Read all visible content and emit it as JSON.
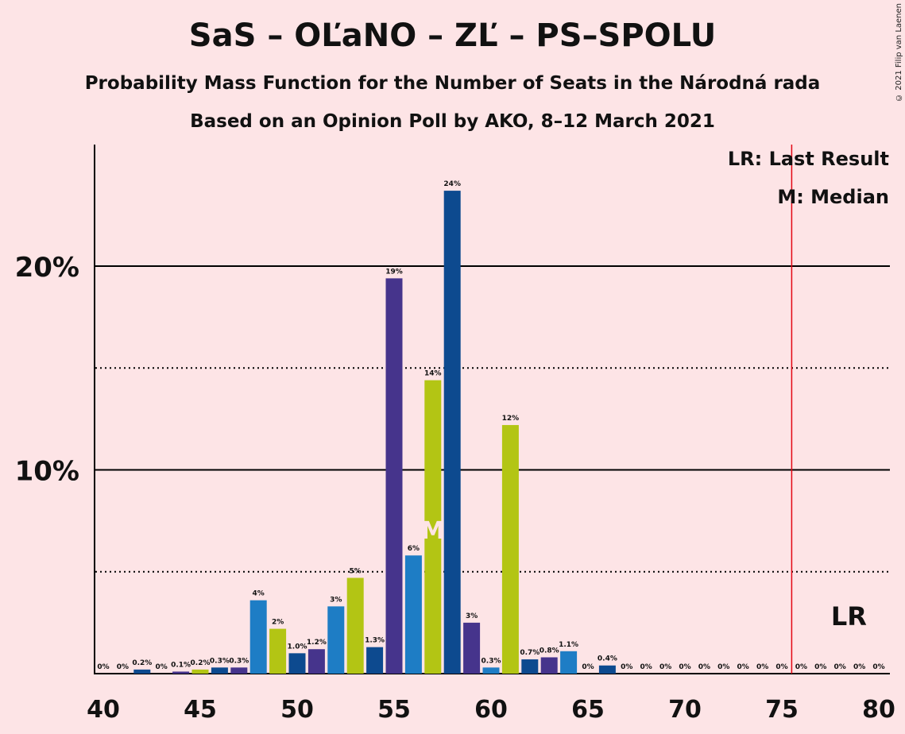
{
  "title": "SaS – OĽaNO – ZĽ – PS–SPOLU",
  "subtitle1": "Probability Mass Function for the Number of Seats in the Národná rada",
  "subtitle2": "Based on an Opinion Poll by AKO, 8–12 March 2021",
  "copyright": "© 2021 Filip van Laenen",
  "legend": {
    "lr": "LR: Last Result",
    "median": "M: Median"
  },
  "markers": {
    "lr_label": "LR",
    "median_label": "M"
  },
  "colors": {
    "background": "#FDE4E6",
    "navy": "#0D4A8F",
    "purple": "#46348C",
    "blue": "#1E7DC5",
    "lime": "#B3C514",
    "lr_line": "#E30613"
  },
  "chart_data": {
    "type": "bar",
    "x": [
      40,
      41,
      42,
      43,
      44,
      45,
      46,
      47,
      48,
      49,
      50,
      51,
      52,
      53,
      54,
      55,
      56,
      57,
      58,
      59,
      60,
      61,
      62,
      63,
      64,
      65,
      66,
      67,
      68,
      69,
      70,
      71,
      72,
      73,
      74,
      75,
      76,
      77,
      78,
      79,
      80
    ],
    "values": [
      0,
      0,
      0.2,
      0,
      0.1,
      0.2,
      0.3,
      0.3,
      3.6,
      2.2,
      1.0,
      1.2,
      3.3,
      4.7,
      1.3,
      19.4,
      5.8,
      14.4,
      23.7,
      2.5,
      0.3,
      12.2,
      0.7,
      0.8,
      1.1,
      0,
      0.4,
      0,
      0,
      0,
      0,
      0,
      0,
      0,
      0,
      0,
      0,
      0,
      0,
      0,
      0
    ],
    "labels": [
      "0%",
      "0%",
      "0.2%",
      "0%",
      "0.1%",
      "0.2%",
      "0.3%",
      "0.3%",
      "4%",
      "2%",
      "1.0%",
      "1.2%",
      "3%",
      "5%",
      "1.3%",
      "19%",
      "6%",
      "14%",
      "24%",
      "3%",
      "0.3%",
      "12%",
      "0.7%",
      "0.8%",
      "1.1%",
      "0%",
      "0.4%",
      "0%",
      "0%",
      "0%",
      "0%",
      "0%",
      "0%",
      "0%",
      "0%",
      "0%",
      "0%",
      "0%",
      "0%",
      "0%",
      "0%"
    ],
    "bar_colors": [
      "navy",
      "purple",
      "navy",
      "purple",
      "purple",
      "lime",
      "navy",
      "purple",
      "blue",
      "lime",
      "navy",
      "purple",
      "blue",
      "lime",
      "navy",
      "purple",
      "blue",
      "lime",
      "navy",
      "purple",
      "blue",
      "lime",
      "navy",
      "purple",
      "blue",
      "lime",
      "navy",
      "purple",
      "blue",
      "lime",
      "navy",
      "purple",
      "blue",
      "lime",
      "navy",
      "purple",
      "blue",
      "lime",
      "navy",
      "purple",
      "blue"
    ],
    "xlim": [
      40,
      80
    ],
    "ylim": [
      0,
      25
    ],
    "x_ticks": [
      "40",
      "45",
      "50",
      "55",
      "60",
      "65",
      "70",
      "75",
      "80"
    ],
    "y_ticks": [
      "10%",
      "20%"
    ],
    "median_seat": 57,
    "last_result_seat": 76
  }
}
